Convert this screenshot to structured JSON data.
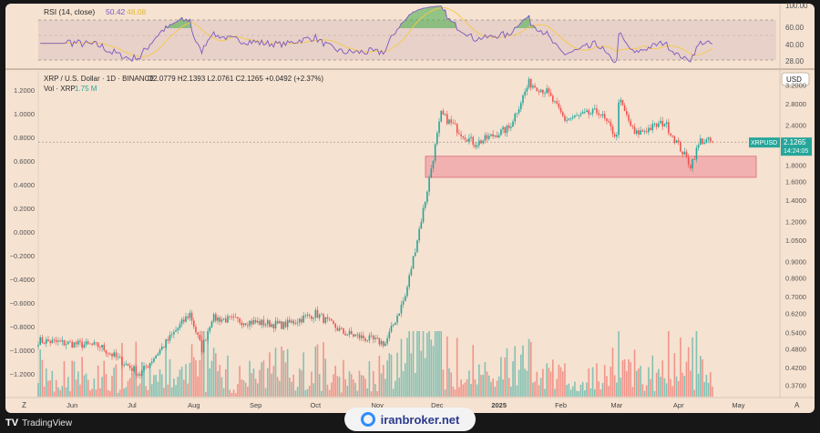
{
  "rsi": {
    "title": "RSI (14, close)",
    "rsi_value": "50.42",
    "ma_value": "48.08",
    "ticks": [
      "100.00",
      "60.00",
      "40.00",
      "28.00"
    ]
  },
  "main": {
    "title": "XRP / U.S. Dollar · 1D · BINANCE",
    "ohlc": "O2.0779  H2.1393  L2.0761  C2.1265  +0.0492 (+2.37%)",
    "vol_label": "Vol · XRP",
    "vol_value": "1.75 M",
    "currency": "USD",
    "symbol_tag": "XRPUSD",
    "price_tag": "2.1265",
    "countdown": "14:24:05",
    "right_ticks": [
      "3.2000",
      "2.8000",
      "2.4000",
      "2.0000",
      "1.8000",
      "1.6000",
      "1.4000",
      "1.2000",
      "1.0500",
      "0.9000",
      "0.8000",
      "0.7000",
      "0.6200",
      "0.5400",
      "0.4800",
      "0.4200",
      "0.3700"
    ],
    "left_ticks": [
      "1.2000",
      "1.0000",
      "0.8000",
      "0.6000",
      "0.4000",
      "0.2000",
      "0.0000",
      "−0.2000",
      "−0.4000",
      "−0.6000",
      "−0.8000",
      "−1.0000",
      "−1.2000"
    ],
    "x_labels": [
      "Jun",
      "Jul",
      "Aug",
      "Sep",
      "Oct",
      "Nov",
      "Dec",
      "2025",
      "Feb",
      "Mar",
      "Apr",
      "May"
    ],
    "corner_left": "Z",
    "corner_right": "A"
  },
  "footer": {
    "brand": "TradingView",
    "watermark": "iranbroker.net"
  },
  "colors": {
    "background": "#f5e2d1",
    "up": "#26a69a",
    "down": "#ef5350",
    "rsi_line": "#7e57c2",
    "rsi_ma": "#f7c948",
    "zone": "#f0a0a5"
  },
  "chart_data": {
    "type": "candlestick",
    "symbol": "XRP / U.S. Dollar",
    "interval": "1D",
    "exchange": "BINANCE",
    "y_scale": "log",
    "ylim": [
      0.35,
      3.5
    ],
    "support_zone": [
      1.65,
      1.92
    ],
    "last_close": 2.1265,
    "anchors": [
      {
        "date": "2024-05-15",
        "price": 0.51
      },
      {
        "date": "2024-06-15",
        "price": 0.49
      },
      {
        "date": "2024-07-05",
        "price": 0.4
      },
      {
        "date": "2024-07-30",
        "price": 0.62
      },
      {
        "date": "2024-08-05",
        "price": 0.48
      },
      {
        "date": "2024-08-10",
        "price": 0.6
      },
      {
        "date": "2024-09-15",
        "price": 0.57
      },
      {
        "date": "2024-10-01",
        "price": 0.62
      },
      {
        "date": "2024-10-15",
        "price": 0.54
      },
      {
        "date": "2024-11-05",
        "price": 0.5
      },
      {
        "date": "2024-11-15",
        "price": 0.7
      },
      {
        "date": "2024-11-25",
        "price": 1.4
      },
      {
        "date": "2024-12-03",
        "price": 2.6
      },
      {
        "date": "2024-12-12",
        "price": 2.3
      },
      {
        "date": "2024-12-20",
        "price": 2.1
      },
      {
        "date": "2025-01-06",
        "price": 2.35
      },
      {
        "date": "2025-01-16",
        "price": 3.25
      },
      {
        "date": "2025-01-25",
        "price": 3.05
      },
      {
        "date": "2025-02-03",
        "price": 2.5
      },
      {
        "date": "2025-02-20",
        "price": 2.65
      },
      {
        "date": "2025-03-01",
        "price": 2.2
      },
      {
        "date": "2025-03-02",
        "price": 2.9
      },
      {
        "date": "2025-03-10",
        "price": 2.25
      },
      {
        "date": "2025-03-25",
        "price": 2.45
      },
      {
        "date": "2025-04-07",
        "price": 1.8
      },
      {
        "date": "2025-04-12",
        "price": 2.15
      },
      {
        "date": "2025-04-18",
        "price": 2.1265
      }
    ]
  }
}
